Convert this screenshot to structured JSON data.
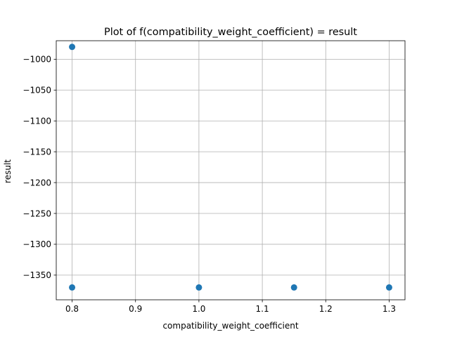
{
  "chart_data": {
    "type": "scatter",
    "title": "Plot of f(compatibility_weight_coefficient) = result",
    "xlabel": "compatibility_weight_coefficient",
    "ylabel": "result",
    "xlim": [
      0.775,
      1.325
    ],
    "ylim": [
      -1390,
      -970
    ],
    "xticks": [
      0.8,
      0.9,
      1.0,
      1.1,
      1.2,
      1.3
    ],
    "xtick_labels": [
      "0.8",
      "0.9",
      "1.0",
      "1.1",
      "1.2",
      "1.3"
    ],
    "yticks": [
      -1000,
      -1050,
      -1100,
      -1150,
      -1200,
      -1250,
      -1300,
      -1350
    ],
    "ytick_labels": [
      "−1000",
      "−1050",
      "−1100",
      "−1150",
      "−1200",
      "−1250",
      "−1300",
      "−1350"
    ],
    "grid": true,
    "marker_color": "#1f77b4",
    "points": [
      {
        "x": 0.8,
        "y": -980
      },
      {
        "x": 0.8,
        "y": -1370
      },
      {
        "x": 1.0,
        "y": -1370
      },
      {
        "x": 1.15,
        "y": -1370
      },
      {
        "x": 1.3,
        "y": -1370
      }
    ]
  }
}
